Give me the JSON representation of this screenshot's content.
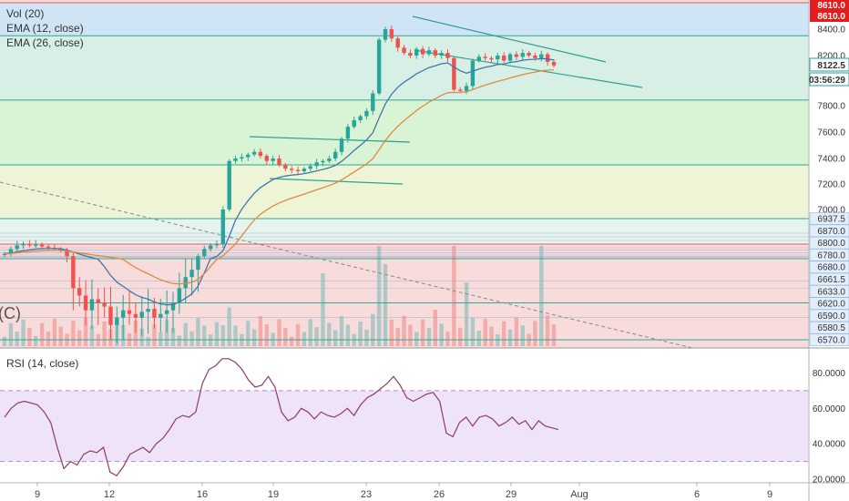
{
  "indicators": {
    "vol": "Vol (20)",
    "ema12": "EMA (12, close)",
    "ema26": "EMA (26, close)",
    "rsi": "RSI (14, close)",
    "partial_c": "(C)"
  },
  "price_tags": {
    "top1": "8610.0",
    "top2": "8610.0",
    "last": "8122.5",
    "countdown": "03:56:29"
  },
  "colors": {
    "up": "#26a69a",
    "down": "#ef5350",
    "ema12": "#3b7ba9",
    "ema26": "#e08a45",
    "rsi": "#8e3a6e",
    "trend": "#2e9f93",
    "tag_red": "#e21d1d",
    "tag_blue": "#4a90d9"
  },
  "chart_data": [
    {
      "type": "candlestick",
      "axis": "price",
      "y_ticks": [
        "8400.0",
        "8200.0",
        "8000.0",
        "7800.0",
        "7600.0",
        "7400.0",
        "7200.0",
        "7000.0",
        "6937.5",
        "6870.0",
        "6800.0",
        "6780.0",
        "6680.0",
        "6661.5",
        "6633.0",
        "6620.0",
        "6590.0",
        "6580.5",
        "6570.0"
      ],
      "x_ticks": [
        "9",
        "12",
        "16",
        "19",
        "23",
        "26",
        "29",
        "Aug",
        "6",
        "9"
      ],
      "ylim": [
        6540,
        8720
      ],
      "horizontal_levels": [
        8610,
        8350,
        7845,
        7350,
        6937.5,
        6800,
        6680,
        6620,
        6570
      ],
      "close_series": [
        6720,
        6760,
        6790,
        6800,
        6790,
        6795,
        6780,
        6770,
        6760,
        6750,
        6700,
        6640,
        6630,
        6610,
        6625,
        6620,
        6615,
        6590,
        6600,
        6610,
        6605,
        6600,
        6608,
        6612,
        6600,
        6605,
        6610,
        6620,
        6640,
        6655,
        6665,
        6700,
        6760,
        6790,
        6800,
        7000,
        7380,
        7400,
        7410,
        7430,
        7450,
        7420,
        7380,
        7400,
        7350,
        7320,
        7310,
        7300,
        7320,
        7340,
        7370,
        7380,
        7400,
        7450,
        7550,
        7640,
        7690,
        7720,
        7760,
        7900,
        8320,
        8400,
        8330,
        8260,
        8220,
        8200,
        8250,
        8210,
        8240,
        8200,
        8220,
        8180,
        7930,
        7920,
        7960,
        8160,
        8190,
        8180,
        8170,
        8200,
        8160,
        8210,
        8190,
        8220,
        8200,
        8180,
        8210,
        8150,
        8122.5
      ]
    },
    {
      "type": "line",
      "axis": "rsi",
      "y_ticks": [
        "80.0000",
        "60.0000",
        "40.0000",
        "20.0000"
      ],
      "ylim": [
        19,
        91
      ],
      "bands": [
        70,
        30
      ],
      "values": [
        55,
        60,
        63,
        64,
        63,
        62,
        58,
        52,
        38,
        26,
        30,
        28,
        34,
        36,
        35,
        38,
        24,
        22,
        27,
        34,
        36,
        38,
        35,
        40,
        43,
        48,
        54,
        56,
        55,
        58,
        74,
        82,
        84,
        88,
        88,
        86,
        82,
        76,
        72,
        73,
        78,
        72,
        58,
        53,
        55,
        60,
        58,
        54,
        58,
        56,
        55,
        57,
        60,
        56,
        62,
        66,
        68,
        71,
        74,
        78,
        73,
        66,
        64,
        66,
        68,
        69,
        64,
        46,
        44,
        52,
        55,
        50,
        55,
        56,
        54,
        50,
        52,
        55,
        51,
        53,
        48,
        53,
        50,
        49,
        48
      ]
    }
  ]
}
